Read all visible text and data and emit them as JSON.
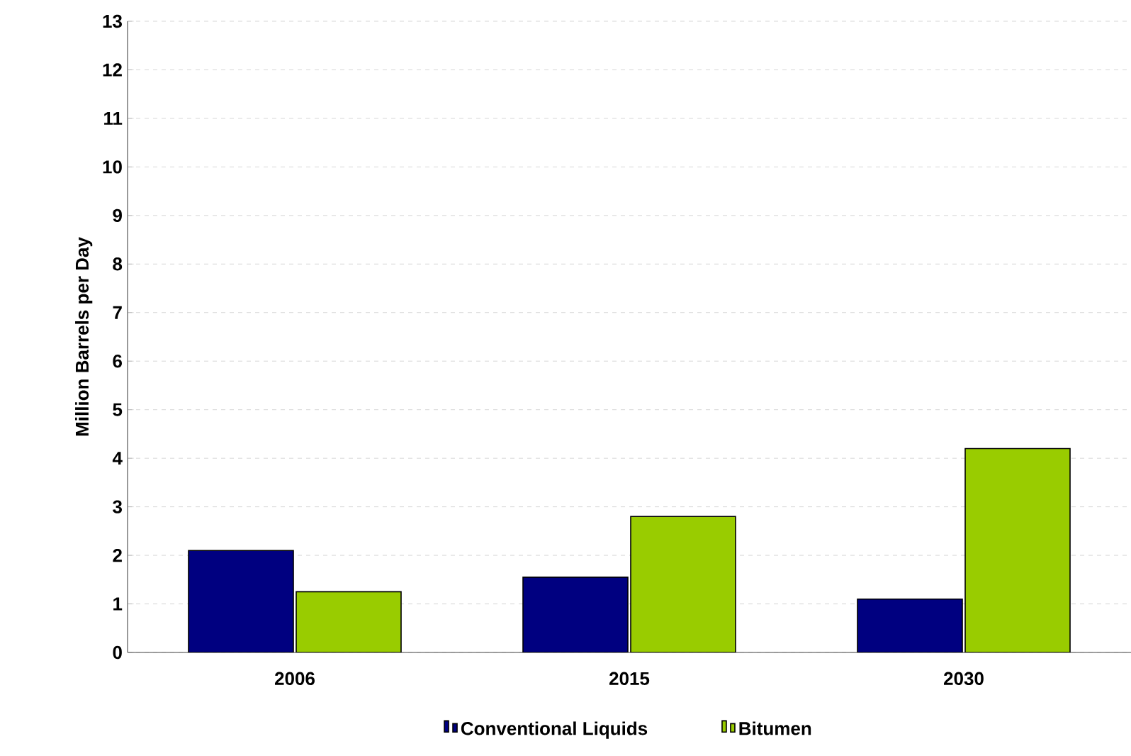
{
  "chart_data": {
    "type": "bar",
    "ylabel": "Million Barrels per Day",
    "categories": [
      "2006",
      "2015",
      "2030"
    ],
    "series": [
      {
        "name": "Conventional Liquids",
        "color": "#000080",
        "values": [
          2.1,
          1.55,
          1.1
        ]
      },
      {
        "name": "Bitumen",
        "color": "#99cc00",
        "values": [
          1.25,
          2.8,
          4.2
        ]
      }
    ],
    "ylim": [
      0,
      13
    ],
    "yticks": [
      0,
      1,
      2,
      3,
      4,
      5,
      6,
      7,
      8,
      9,
      10,
      11,
      12,
      13
    ],
    "grid": "y",
    "legend": "bottom"
  }
}
